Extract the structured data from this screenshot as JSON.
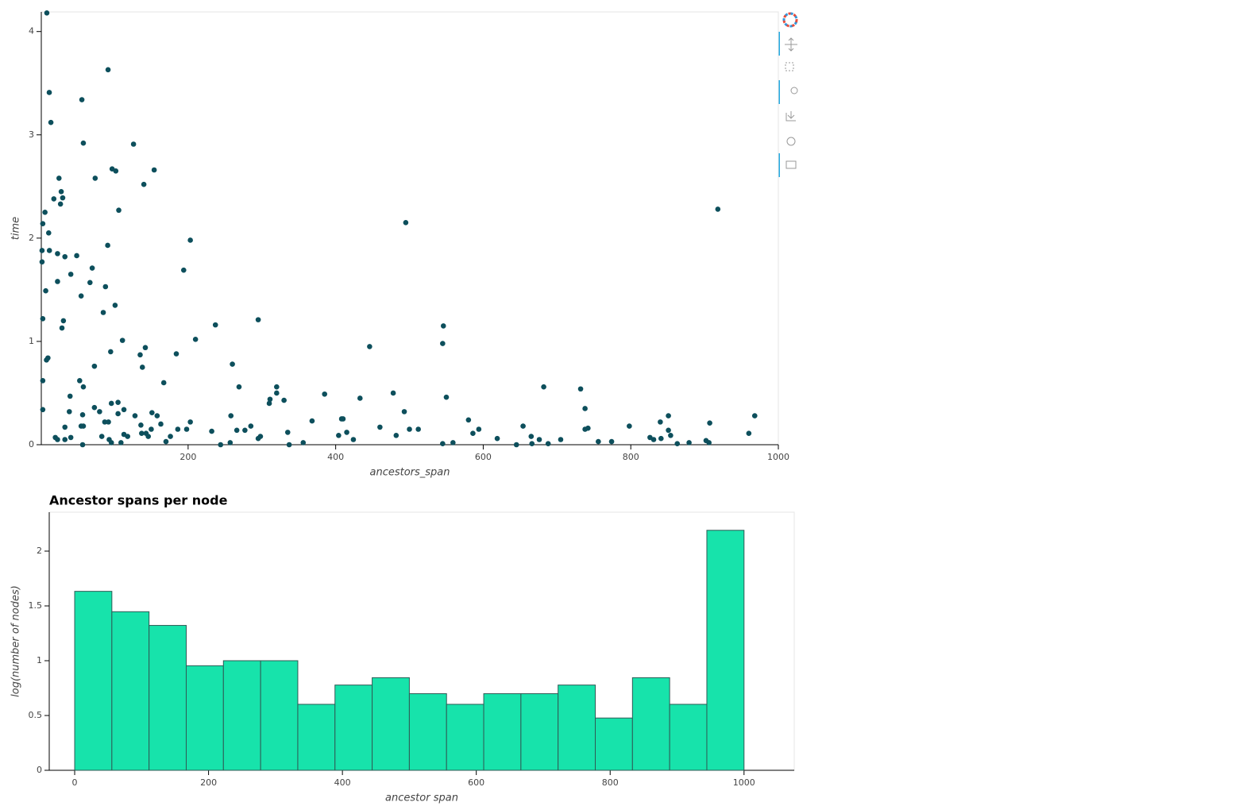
{
  "chart_data": [
    {
      "type": "scatter",
      "xlabel": "ancestors_span",
      "ylabel": "time",
      "color": "#0d4f5c",
      "grid": false,
      "xlim": [
        1,
        1000
      ],
      "ylim": [
        0,
        4.19
      ],
      "xticks": [
        200,
        400,
        600,
        800,
        1000
      ],
      "yticks": [
        0,
        1,
        2,
        3,
        4
      ],
      "x": [
        8.5,
        91.5,
        11.8,
        56,
        14,
        58,
        126,
        97,
        102,
        154,
        25,
        74,
        140,
        28,
        30,
        18,
        27,
        6,
        106,
        3,
        495,
        918,
        11,
        203,
        91,
        2,
        12,
        23,
        49,
        33,
        2,
        70,
        194,
        41,
        23,
        67,
        88,
        7,
        55,
        101,
        85,
        3,
        31,
        295,
        29,
        546,
        237,
        210,
        111,
        545,
        142,
        446,
        95,
        184,
        135,
        10,
        8,
        260,
        73,
        138,
        3,
        53,
        167,
        58,
        269,
        320,
        682,
        732,
        320,
        385,
        478,
        40,
        550,
        433,
        330,
        311,
        105,
        96,
        310,
        73,
        738,
        3,
        113,
        80,
        39,
        493,
        105,
        151,
        57,
        128,
        158,
        258,
        851,
        968,
        87,
        92,
        203,
        368,
        408,
        410,
        580,
        840,
        907,
        163,
        136,
        285,
        460,
        654,
        798,
        55,
        58,
        33,
        150,
        186,
        198,
        266,
        277,
        232,
        335,
        500,
        512,
        594,
        742,
        738,
        851,
        137,
        143,
        113,
        415,
        586,
        960,
        176,
        83,
        118,
        146,
        404,
        482,
        665,
        854,
        298,
        295,
        20,
        41,
        23,
        33,
        619,
        676,
        705,
        826,
        831,
        841,
        902,
        93,
        96,
        109,
        170,
        257,
        356,
        424,
        545,
        559,
        645,
        666,
        688,
        756,
        774,
        863,
        879,
        906,
        57,
        244,
        337
      ],
      "values": [
        4.18,
        3.63,
        3.41,
        3.34,
        3.12,
        2.92,
        2.91,
        2.67,
        2.65,
        2.66,
        2.58,
        2.58,
        2.52,
        2.45,
        2.39,
        2.38,
        2.33,
        2.25,
        2.27,
        2.14,
        2.15,
        2.28,
        2.05,
        1.98,
        1.93,
        1.88,
        1.88,
        1.85,
        1.83,
        1.82,
        1.77,
        1.71,
        1.69,
        1.65,
        1.58,
        1.57,
        1.53,
        1.49,
        1.44,
        1.35,
        1.28,
        1.22,
        1.2,
        1.21,
        1.13,
        1.15,
        1.16,
        1.02,
        1.01,
        0.98,
        0.94,
        0.95,
        0.9,
        0.88,
        0.87,
        0.84,
        0.82,
        0.78,
        0.76,
        0.75,
        0.62,
        0.62,
        0.6,
        0.56,
        0.56,
        0.56,
        0.56,
        0.54,
        0.5,
        0.49,
        0.5,
        0.47,
        0.46,
        0.45,
        0.43,
        0.44,
        0.41,
        0.4,
        0.4,
        0.36,
        0.35,
        0.34,
        0.34,
        0.32,
        0.32,
        0.32,
        0.3,
        0.31,
        0.29,
        0.28,
        0.28,
        0.28,
        0.28,
        0.28,
        0.22,
        0.22,
        0.22,
        0.23,
        0.25,
        0.25,
        0.24,
        0.22,
        0.21,
        0.2,
        0.19,
        0.18,
        0.17,
        0.18,
        0.18,
        0.18,
        0.18,
        0.17,
        0.15,
        0.15,
        0.15,
        0.14,
        0.14,
        0.13,
        0.12,
        0.15,
        0.15,
        0.15,
        0.16,
        0.15,
        0.14,
        0.11,
        0.11,
        0.1,
        0.12,
        0.11,
        0.11,
        0.08,
        0.08,
        0.08,
        0.08,
        0.09,
        0.09,
        0.08,
        0.09,
        0.08,
        0.06,
        0.07,
        0.07,
        0.05,
        0.05,
        0.06,
        0.05,
        0.05,
        0.07,
        0.05,
        0.06,
        0.04,
        0.05,
        0.02,
        0.02,
        0.03,
        0.02,
        0.02,
        0.05,
        0.01,
        0.02,
        0,
        0.01,
        0.01,
        0.03,
        0.03,
        0.01,
        0.02,
        0.02,
        0,
        0,
        0
      ]
    },
    {
      "type": "histogram",
      "title": "Ancestor spans per node",
      "xlabel": "ancestor span",
      "ylabel": "log(number of nodes)",
      "color": "#17e3ab",
      "edgecolor": "#2f5a55",
      "grid": false,
      "xlim": [
        -38,
        1075
      ],
      "ylim": [
        0,
        2.355
      ],
      "xticks": [
        0,
        200,
        400,
        600,
        800,
        1000
      ],
      "yticks": [
        0,
        0.5,
        1,
        1.5,
        2
      ],
      "bins": [
        0,
        55.556,
        111.111,
        166.667,
        222.222,
        277.778,
        333.333,
        388.889,
        444.444,
        500,
        555.556,
        611.111,
        666.667,
        722.222,
        777.778,
        833.333,
        888.889,
        944.444,
        1000
      ],
      "values": [
        1.633,
        1.447,
        1.322,
        0.954,
        1,
        1,
        0.602,
        0.778,
        0.845,
        0.699,
        0.602,
        0.699,
        0.699,
        0.778,
        0.477,
        0.845,
        0.602,
        2.19
      ]
    }
  ]
}
